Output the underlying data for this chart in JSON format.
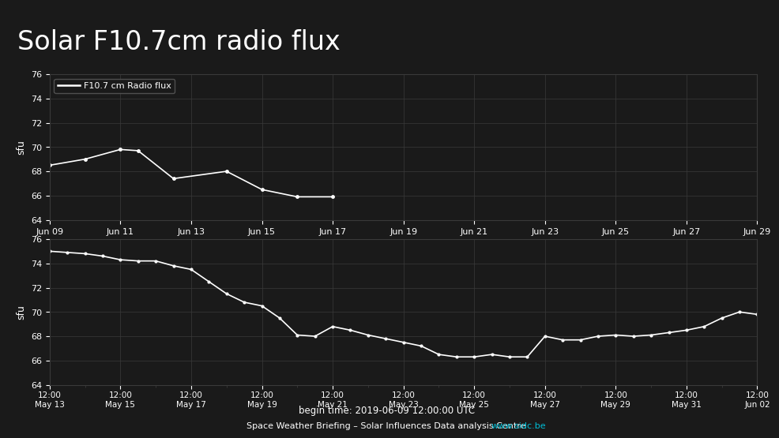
{
  "title": "Solar F10.7cm radio flux",
  "title_bg_color": "#00bcd4",
  "title_text_color": "#ffffff",
  "plot_bg_color": "#1a1a1a",
  "fig_bg_color": "#1a1a1a",
  "line_color": "#ffffff",
  "grid_color": "#3a3a3a",
  "text_color": "#ffffff",
  "footer_text": "Space Weather Briefing – Solar Influences Data analysis Centre ",
  "footer_link": "www.sidc.be",
  "footer_link_color": "#00bcd4",
  "begin_time_text": "begin time: 2019-06-09 12:00:00 UTC",
  "top_plot": {
    "x_labels": [
      "Jun 09",
      "Jun 11",
      "Jun 13",
      "Jun 15",
      "Jun 17",
      "Jun 19",
      "Jun 21",
      "Jun 23",
      "Jun 25",
      "Jun 27",
      "Jun 29"
    ],
    "x_positions": [
      0,
      2,
      4,
      6,
      8,
      10,
      12,
      14,
      16,
      18,
      20
    ],
    "xlim": [
      0,
      20
    ],
    "ylim": [
      64,
      76
    ],
    "yticks": [
      64,
      66,
      68,
      70,
      72,
      74,
      76
    ],
    "ylabel": "sfu",
    "legend_label": "F10.7 cm Radio flux",
    "data_x": [
      0,
      1.0,
      2.0,
      2.5,
      3.5,
      5.0,
      6.0,
      7.0,
      8.0
    ],
    "data_y": [
      68.5,
      69.0,
      69.8,
      69.7,
      67.4,
      68.0,
      66.5,
      65.9,
      65.9
    ]
  },
  "bottom_plot": {
    "x_tick_positions": [
      0,
      2,
      4,
      6,
      8,
      10,
      12,
      14,
      16,
      18,
      20
    ],
    "x_tick_labels": [
      "12:00\nMay 13",
      "12:00\nMay 15",
      "12:00\nMay 17",
      "12:00\nMay 19",
      "12:00\nMay 21",
      "12:00\nMay 23",
      "12:00\nMay 25",
      "12:00\nMay 27",
      "12:00\nMay 29",
      "12:00\nMay 31",
      "12:00\nJun 02"
    ],
    "x_minor_tick_positions": [
      1,
      3,
      5,
      7,
      9,
      11,
      13,
      15,
      17,
      19
    ],
    "xlim": [
      0,
      20
    ],
    "ylim": [
      64,
      76
    ],
    "yticks": [
      64,
      66,
      68,
      70,
      72,
      74,
      76
    ],
    "ylabel": "sfu",
    "data_x": [
      0,
      0.5,
      1.0,
      1.5,
      2.0,
      2.5,
      3.0,
      3.5,
      4.0,
      4.5,
      5.0,
      5.5,
      6.0,
      6.5,
      7.0,
      7.5,
      8.0,
      8.5,
      9.0,
      9.5,
      10.0,
      10.5,
      11.0,
      11.5,
      12.0,
      12.5,
      13.0,
      13.5,
      14.0,
      14.5,
      15.0,
      15.5,
      16.0,
      16.5,
      17.0,
      17.5,
      18.0,
      18.5,
      19.0,
      19.5,
      20.0
    ],
    "data_y": [
      75.0,
      74.9,
      74.8,
      74.6,
      74.3,
      74.2,
      74.2,
      73.8,
      73.5,
      72.5,
      71.5,
      70.8,
      70.5,
      69.5,
      68.1,
      68.0,
      68.8,
      68.5,
      68.1,
      67.8,
      67.5,
      67.2,
      66.5,
      66.3,
      66.3,
      66.5,
      66.3,
      66.3,
      68.0,
      67.7,
      67.7,
      68.0,
      68.1,
      68.0,
      68.1,
      68.3,
      68.5,
      68.8,
      69.5,
      70.0,
      69.8
    ]
  }
}
